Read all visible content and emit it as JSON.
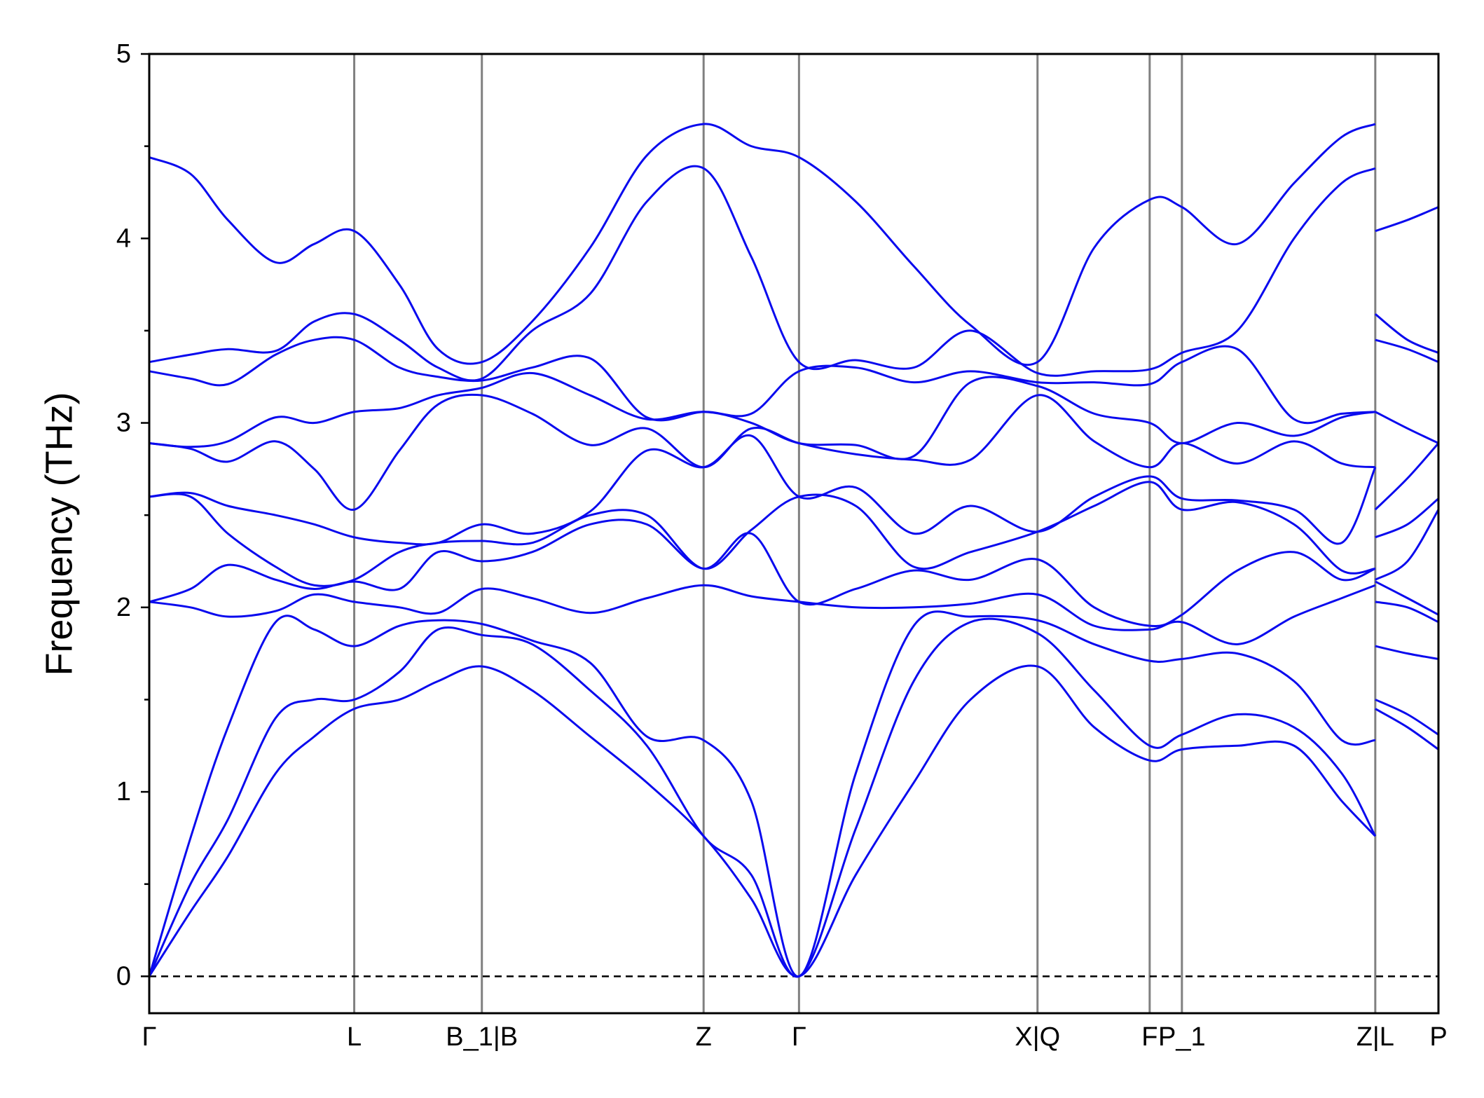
{
  "chart_data": {
    "type": "line",
    "ylabel": "Frequency (THz)",
    "xlim": [
      0,
      1
    ],
    "ylim": [
      -0.2,
      5
    ],
    "yticks": [
      0,
      1,
      2,
      3,
      4,
      5
    ],
    "yminor_ticks": [
      0.5,
      1.5,
      2.5,
      3.5,
      4.5
    ],
    "xticks": [
      {
        "value": 0,
        "label": "Γ"
      },
      {
        "value": 0.159,
        "label": "L"
      },
      {
        "value": 0.258,
        "label": "B_1|B"
      },
      {
        "value": 0.43,
        "label": "Z"
      },
      {
        "value": 0.504,
        "label": "Γ"
      },
      {
        "value": 0.689,
        "label": "X|Q"
      },
      {
        "value": 0.776,
        "label": "F"
      },
      {
        "value": 0.801,
        "label": "P_1"
      },
      {
        "value": 0.951,
        "label": "Z|L"
      },
      {
        "value": 1,
        "label": "P"
      }
    ],
    "reference_line": {
      "value": 0,
      "style": "dashed",
      "color": "#000000"
    },
    "vline_color": "#808080",
    "x": [
      0,
      0.032,
      0.061,
      0.098,
      0.128,
      0.159,
      0.194,
      0.224,
      0.258,
      0.297,
      0.342,
      0.386,
      0.43,
      0.467,
      0.504,
      0.548,
      0.593,
      0.637,
      0.689,
      0.733,
      0.776,
      0.801,
      0.844,
      0.888,
      0.925,
      0.951,
      0.951,
      0.951,
      0.976,
      1
    ],
    "series": [
      {
        "color": "#0a0aee",
        "values": [
          0,
          0.35,
          0.65,
          1.1,
          1.3,
          1.45,
          1.5,
          1.6,
          1.68,
          1.55,
          1.3,
          1.05,
          0.76,
          0.42,
          0,
          0.55,
          1.05,
          1.5,
          1.68,
          1.35,
          1.17,
          1.23,
          1.25,
          1.25,
          0.95,
          0.76,
          null,
          1.45,
          1.35,
          1.23
        ]
      },
      {
        "color": "#0a0aee",
        "values": [
          0,
          0.5,
          0.85,
          1.4,
          1.5,
          1.5,
          1.65,
          1.88,
          1.85,
          1.8,
          1.55,
          1.25,
          0.76,
          0.55,
          0,
          0.8,
          1.6,
          1.92,
          1.86,
          1.55,
          1.25,
          1.31,
          1.42,
          1.35,
          1.1,
          0.76,
          null,
          1.5,
          1.42,
          1.31
        ]
      },
      {
        "color": "#0a0aee",
        "values": [
          0,
          0.75,
          1.35,
          1.92,
          1.88,
          1.79,
          1.9,
          1.93,
          1.91,
          1.82,
          1.7,
          1.3,
          1.28,
          0.95,
          0,
          1.1,
          1.9,
          1.95,
          1.93,
          1.8,
          1.71,
          1.72,
          1.75,
          1.6,
          1.28,
          1.28,
          null,
          1.79,
          1.75,
          1.72
        ]
      },
      {
        "color": "#0a0aee",
        "values": [
          2.03,
          2.0,
          1.95,
          1.98,
          2.07,
          2.03,
          2.0,
          1.97,
          2.1,
          2.05,
          1.97,
          2.05,
          2.12,
          2.06,
          2.03,
          2.0,
          2.0,
          2.02,
          2.07,
          1.9,
          1.88,
          1.92,
          1.8,
          1.95,
          2.05,
          2.12,
          null,
          2.03,
          2.0,
          1.92
        ]
      },
      {
        "color": "#0a0aee",
        "values": [
          2.03,
          2.1,
          2.23,
          2.15,
          2.1,
          2.14,
          2.1,
          2.3,
          2.25,
          2.3,
          2.45,
          2.45,
          2.21,
          2.4,
          2.03,
          2.1,
          2.2,
          2.15,
          2.26,
          2.0,
          1.9,
          1.96,
          2.2,
          2.3,
          2.15,
          2.21,
          null,
          2.14,
          2.05,
          1.96
        ]
      },
      {
        "color": "#0a0aee",
        "values": [
          2.6,
          2.6,
          2.4,
          2.22,
          2.12,
          2.15,
          2.3,
          2.35,
          2.36,
          2.35,
          2.5,
          2.5,
          2.21,
          2.42,
          2.6,
          2.55,
          2.22,
          2.3,
          2.41,
          2.55,
          2.68,
          2.53,
          2.57,
          2.45,
          2.2,
          2.21,
          null,
          2.15,
          2.25,
          2.53
        ]
      },
      {
        "color": "#0a0aee",
        "values": [
          2.6,
          2.62,
          2.55,
          2.5,
          2.45,
          2.38,
          2.35,
          2.35,
          2.45,
          2.4,
          2.52,
          2.85,
          2.76,
          2.93,
          2.6,
          2.65,
          2.4,
          2.55,
          2.41,
          2.6,
          2.71,
          2.59,
          2.58,
          2.53,
          2.35,
          2.76,
          null,
          2.38,
          2.45,
          2.59
        ]
      },
      {
        "color": "#0a0aee",
        "values": [
          2.89,
          2.86,
          2.79,
          2.9,
          2.75,
          2.53,
          2.85,
          3.1,
          3.15,
          3.05,
          2.88,
          2.97,
          2.76,
          2.97,
          2.89,
          2.83,
          2.8,
          2.8,
          3.15,
          2.9,
          2.76,
          2.89,
          2.78,
          2.9,
          2.78,
          2.76,
          null,
          2.53,
          2.7,
          2.89
        ]
      },
      {
        "color": "#0a0aee",
        "values": [
          2.89,
          2.87,
          2.9,
          3.03,
          3.0,
          3.06,
          3.08,
          3.15,
          3.19,
          3.27,
          3.15,
          3.02,
          3.06,
          3.0,
          2.89,
          2.88,
          2.82,
          3.22,
          3.2,
          3.05,
          3.0,
          2.89,
          3.0,
          2.93,
          3.03,
          3.06,
          null,
          3.06,
          2.97,
          2.89
        ]
      },
      {
        "color": "#0a0aee",
        "values": [
          3.28,
          3.24,
          3.21,
          3.37,
          3.45,
          3.45,
          3.3,
          3.25,
          3.23,
          3.3,
          3.35,
          3.03,
          3.06,
          3.05,
          3.28,
          3.3,
          3.22,
          3.28,
          3.22,
          3.22,
          3.21,
          3.33,
          3.4,
          3.02,
          3.05,
          3.06,
          null,
          3.45,
          3.4,
          3.33
        ]
      },
      {
        "color": "#0a0aee",
        "values": [
          3.33,
          3.37,
          3.4,
          3.39,
          3.55,
          3.59,
          3.45,
          3.3,
          3.24,
          3.5,
          3.7,
          4.2,
          4.38,
          3.9,
          3.33,
          3.34,
          3.3,
          3.5,
          3.27,
          3.28,
          3.29,
          3.38,
          3.5,
          4.0,
          4.3,
          4.38,
          null,
          3.59,
          3.45,
          3.38
        ]
      },
      {
        "color": "#0a0aee",
        "values": [
          4.44,
          4.35,
          4.1,
          3.87,
          3.97,
          4.04,
          3.75,
          3.4,
          3.33,
          3.55,
          3.95,
          4.45,
          4.62,
          4.5,
          4.44,
          4.2,
          3.85,
          3.53,
          3.33,
          3.95,
          4.21,
          4.17,
          3.97,
          4.3,
          4.55,
          4.62,
          null,
          4.04,
          4.1,
          4.17
        ]
      }
    ]
  }
}
